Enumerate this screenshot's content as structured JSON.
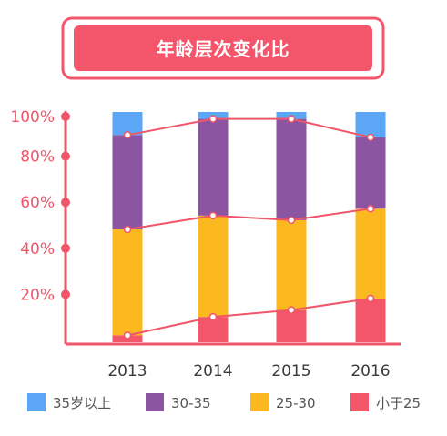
{
  "colors": {
    "accent": "#f0566a",
    "banner_bg": "#f3566b",
    "banner_border": "#f3566b",
    "banner_bg_light": "#ffffff"
  },
  "chart_data": {
    "type": "bar",
    "stacked": true,
    "normalized": true,
    "title": "年龄层次变化比",
    "categories": [
      "2013",
      "2014",
      "2015",
      "2016"
    ],
    "yticks": [
      "20%",
      "40%",
      "60%",
      "80%",
      "100%"
    ],
    "ylim": [
      0,
      100
    ],
    "legend_position": "bottom",
    "series": [
      {
        "name": "小于25",
        "color": "#f45669",
        "values": [
          3,
          11,
          14,
          19
        ]
      },
      {
        "name": "25-30",
        "color": "#fbb91f",
        "values": [
          46,
          44,
          39,
          39
        ]
      },
      {
        "name": "30-35",
        "color": "#8b55a2",
        "values": [
          41,
          42,
          44,
          31
        ]
      },
      {
        "name": "35岁以上",
        "color": "#5ba6f5",
        "values": [
          10,
          3,
          3,
          11
        ]
      }
    ],
    "legend_order": [
      "35岁以上",
      "30-35",
      "25-30",
      "小于25"
    ],
    "trend_lines": [
      {
        "values": [
          3,
          11,
          14,
          19
        ]
      },
      {
        "values": [
          49,
          55,
          53,
          58
        ]
      },
      {
        "values": [
          90,
          97,
          97,
          89
        ]
      }
    ]
  }
}
